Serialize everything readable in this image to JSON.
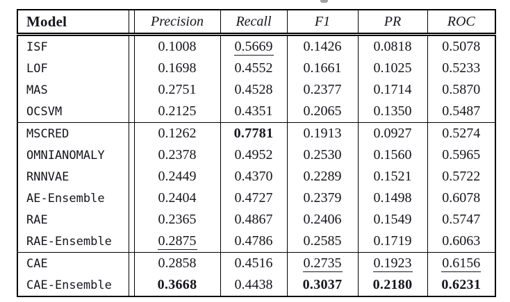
{
  "table": {
    "columns": [
      "Model",
      "Precision",
      "Recall",
      "F1",
      "PR",
      "ROC"
    ],
    "rows": [
      {
        "model": "ISF",
        "rule_above": false,
        "values": [
          {
            "text": "0.1008"
          },
          {
            "text": "0.5669",
            "underline": true
          },
          {
            "text": "0.1426"
          },
          {
            "text": "0.0818"
          },
          {
            "text": "0.5078"
          }
        ]
      },
      {
        "model": "LOF",
        "rule_above": false,
        "values": [
          {
            "text": "0.1698"
          },
          {
            "text": "0.4552"
          },
          {
            "text": "0.1661"
          },
          {
            "text": "0.1025"
          },
          {
            "text": "0.5233"
          }
        ]
      },
      {
        "model": "MAS",
        "rule_above": false,
        "values": [
          {
            "text": "0.2751"
          },
          {
            "text": "0.4528"
          },
          {
            "text": "0.2377"
          },
          {
            "text": "0.1714"
          },
          {
            "text": "0.5870"
          }
        ]
      },
      {
        "model": "OCSVM",
        "rule_above": false,
        "values": [
          {
            "text": "0.2125"
          },
          {
            "text": "0.4351"
          },
          {
            "text": "0.2065"
          },
          {
            "text": "0.1350"
          },
          {
            "text": "0.5487"
          }
        ]
      },
      {
        "model": "MSCRED",
        "rule_above": true,
        "values": [
          {
            "text": "0.1262"
          },
          {
            "text": "0.7781",
            "bold": true
          },
          {
            "text": "0.1913"
          },
          {
            "text": "0.0927"
          },
          {
            "text": "0.5274"
          }
        ]
      },
      {
        "model": "OMNIANOMALY",
        "rule_above": false,
        "values": [
          {
            "text": "0.2378"
          },
          {
            "text": "0.4952"
          },
          {
            "text": "0.2530"
          },
          {
            "text": "0.1560"
          },
          {
            "text": "0.5965"
          }
        ]
      },
      {
        "model": "RNNVAE",
        "rule_above": false,
        "values": [
          {
            "text": "0.2449"
          },
          {
            "text": "0.4370"
          },
          {
            "text": "0.2289"
          },
          {
            "text": "0.1521"
          },
          {
            "text": "0.5722"
          }
        ]
      },
      {
        "model": "AE-Ensemble",
        "rule_above": false,
        "values": [
          {
            "text": "0.2404"
          },
          {
            "text": "0.4727"
          },
          {
            "text": "0.2379"
          },
          {
            "text": "0.1498"
          },
          {
            "text": "0.6078"
          }
        ]
      },
      {
        "model": "RAE",
        "rule_above": false,
        "values": [
          {
            "text": "0.2365"
          },
          {
            "text": "0.4867"
          },
          {
            "text": "0.2406"
          },
          {
            "text": "0.1549"
          },
          {
            "text": "0.5747"
          }
        ]
      },
      {
        "model": "RAE-Ensemble",
        "rule_above": false,
        "values": [
          {
            "text": "0.2875",
            "underline": true
          },
          {
            "text": "0.4786"
          },
          {
            "text": "0.2585"
          },
          {
            "text": "0.1719"
          },
          {
            "text": "0.6063"
          }
        ]
      },
      {
        "model": "CAE",
        "rule_above": true,
        "values": [
          {
            "text": "0.2858"
          },
          {
            "text": "0.4516"
          },
          {
            "text": "0.2735",
            "underline": true
          },
          {
            "text": "0.1923",
            "underline": true
          },
          {
            "text": "0.6156",
            "underline": true
          }
        ]
      },
      {
        "model": "CAE-Ensemble",
        "rule_above": false,
        "values": [
          {
            "text": "0.3668",
            "bold": true
          },
          {
            "text": "0.4438"
          },
          {
            "text": "0.3037",
            "bold": true
          },
          {
            "text": "0.2180",
            "bold": true
          },
          {
            "text": "0.6231",
            "bold": true
          }
        ]
      }
    ],
    "colors": {
      "border": "#000000",
      "text": "#15151d",
      "background": "#ffffff"
    }
  }
}
